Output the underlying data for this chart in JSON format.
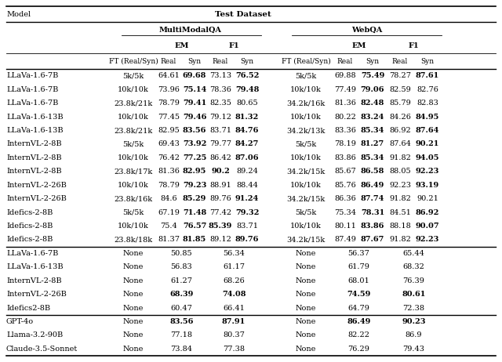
{
  "rows_section1": [
    [
      "LLaVa-1.6-7B",
      "5k/5k",
      "64.61",
      "69.68",
      "73.13",
      "76.52",
      "5k/5k",
      "69.88",
      "75.49",
      "78.27",
      "87.61"
    ],
    [
      "LLaVa-1.6-7B",
      "10k/10k",
      "73.96",
      "75.14",
      "78.36",
      "79.48",
      "10k/10k",
      "77.49",
      "79.06",
      "82.59",
      "82.76"
    ],
    [
      "LLaVa-1.6-7B",
      "23.8k/21k",
      "78.79",
      "79.41",
      "82.35",
      "80.65",
      "34.2k/16k",
      "81.36",
      "82.48",
      "85.79",
      "82.83"
    ],
    [
      "LLaVa-1.6-13B",
      "10k/10k",
      "77.45",
      "79.46",
      "79.12",
      "81.32",
      "10k/10k",
      "80.22",
      "83.24",
      "84.26",
      "84.95"
    ],
    [
      "LLaVa-1.6-13B",
      "23.8k/21k",
      "82.95",
      "83.56",
      "83.71",
      "84.76",
      "34.2k/13k",
      "83.36",
      "85.34",
      "86.92",
      "87.64"
    ],
    [
      "InternVL-2-8B",
      "5k/5k",
      "69.43",
      "73.92",
      "79.77",
      "84.27",
      "5k/5k",
      "78.19",
      "81.27",
      "87.64",
      "90.21"
    ],
    [
      "InternVL-2-8B",
      "10k/10k",
      "76.42",
      "77.25",
      "86.42",
      "87.06",
      "10k/10k",
      "83.86",
      "85.34",
      "91.82",
      "94.05"
    ],
    [
      "InternVL-2-8B",
      "23.8k/17k",
      "81.36",
      "82.95",
      "90.2",
      "89.24",
      "34.2k/15k",
      "85.67",
      "86.58",
      "88.05",
      "92.23"
    ],
    [
      "InternVL-2-26B",
      "10k/10k",
      "78.79",
      "79.23",
      "88.91",
      "88.44",
      "10k/10k",
      "85.76",
      "86.49",
      "92.23",
      "93.19"
    ],
    [
      "InternVL-2-26B",
      "23.8k/16k",
      "84.6",
      "85.29",
      "89.76",
      "91.24",
      "34.2k/15k",
      "86.36",
      "87.74",
      "91.82",
      "90.21"
    ],
    [
      "Idefics-2-8B",
      "5k/5k",
      "67.19",
      "71.48",
      "77.42",
      "79.32",
      "5k/5k",
      "75.34",
      "78.31",
      "84.51",
      "86.92"
    ],
    [
      "Idefics-2-8B",
      "10k/10k",
      "75.4",
      "76.57",
      "85.39",
      "83.71",
      "10k/10k",
      "80.11",
      "83.86",
      "88.18",
      "90.07"
    ],
    [
      "Idefics-2-8B",
      "23.8k/18k",
      "81.37",
      "81.85",
      "89.12",
      "89.76",
      "34.2k/15k",
      "87.49",
      "87.67",
      "91.82",
      "92.23"
    ]
  ],
  "bold_section1_mqa": [
    [
      false,
      true,
      false,
      true
    ],
    [
      false,
      true,
      false,
      true
    ],
    [
      false,
      true,
      false,
      false
    ],
    [
      false,
      true,
      false,
      true
    ],
    [
      false,
      true,
      false,
      true
    ],
    [
      false,
      true,
      false,
      true
    ],
    [
      false,
      true,
      false,
      true
    ],
    [
      false,
      true,
      true,
      false
    ],
    [
      false,
      true,
      false,
      false
    ],
    [
      false,
      true,
      false,
      true
    ],
    [
      false,
      true,
      false,
      true
    ],
    [
      false,
      true,
      true,
      false
    ],
    [
      false,
      true,
      false,
      true
    ]
  ],
  "bold_section1_webqa": [
    [
      false,
      true,
      false,
      true
    ],
    [
      false,
      true,
      false,
      false
    ],
    [
      false,
      true,
      false,
      false
    ],
    [
      false,
      true,
      false,
      true
    ],
    [
      false,
      true,
      false,
      true
    ],
    [
      false,
      true,
      false,
      true
    ],
    [
      false,
      true,
      false,
      true
    ],
    [
      false,
      true,
      false,
      true
    ],
    [
      false,
      true,
      false,
      true
    ],
    [
      false,
      true,
      false,
      false
    ],
    [
      false,
      true,
      false,
      true
    ],
    [
      false,
      true,
      false,
      true
    ],
    [
      false,
      true,
      false,
      true
    ]
  ],
  "rows_section2": [
    [
      "LLaVa-1.6-7B",
      "None",
      "50.85",
      "56.34",
      "None",
      "56.37",
      "65.44"
    ],
    [
      "LLaVa-1.6-13B",
      "None",
      "56.83",
      "61.17",
      "None",
      "61.79",
      "68.32"
    ],
    [
      "InternVL-2-8B",
      "None",
      "61.27",
      "68.26",
      "None",
      "68.01",
      "76.39"
    ],
    [
      "InternVL-2-26B",
      "None",
      "68.39",
      "74.08",
      "None",
      "74.59",
      "80.61"
    ],
    [
      "Idefics2-8B",
      "None",
      "60.47",
      "66.41",
      "None",
      "64.79",
      "72.38"
    ]
  ],
  "bold_section2_mqa": [
    [
      false,
      false
    ],
    [
      false,
      false
    ],
    [
      false,
      false
    ],
    [
      true,
      true
    ],
    [
      false,
      false
    ]
  ],
  "bold_section2_webqa": [
    [
      false,
      false
    ],
    [
      false,
      false
    ],
    [
      false,
      false
    ],
    [
      true,
      true
    ],
    [
      false,
      false
    ]
  ],
  "rows_section3": [
    [
      "GPT-4o",
      "None",
      "83.56",
      "87.91",
      "None",
      "86.49",
      "90.23"
    ],
    [
      "Llama-3.2-90B",
      "None",
      "77.18",
      "80.37",
      "None",
      "82.22",
      "86.9"
    ],
    [
      "Claude-3.5-Sonnet",
      "None",
      "73.84",
      "77.38",
      "None",
      "76.29",
      "79.43"
    ]
  ],
  "bold_section3_mqa": [
    [
      true,
      true
    ],
    [
      false,
      false
    ],
    [
      false,
      false
    ]
  ],
  "bold_section3_webqa": [
    [
      true,
      true
    ],
    [
      false,
      false
    ],
    [
      false,
      false
    ]
  ]
}
